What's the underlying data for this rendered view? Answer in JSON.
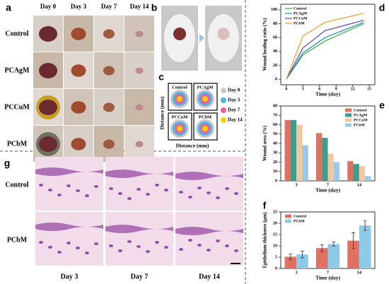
{
  "panel_a": {
    "label": "a",
    "columns": [
      "Day 0",
      "Day 3",
      "Day 7",
      "Day 14"
    ],
    "rows": [
      "Control",
      "PCAgM",
      "PCCuM",
      "PCbM"
    ]
  },
  "panel_b": {
    "label": "b"
  },
  "panel_c": {
    "label": "c",
    "groups": [
      "Control",
      "PCAgM",
      "PCCuM",
      "PCbM"
    ],
    "legend": [
      {
        "name": "Day 0",
        "color": "#c8c8c8"
      },
      {
        "name": "Day 3",
        "color": "#4fb3e8"
      },
      {
        "name": "Day 7",
        "color": "#e8609a"
      },
      {
        "name": "Day 14",
        "color": "#f5d000"
      }
    ],
    "x_label": "Distance (mm)",
    "y_label": "Distance (mm)"
  },
  "panel_g": {
    "label": "g",
    "rows": [
      "Control",
      "PCbM"
    ],
    "columns": [
      "Day 3",
      "Day 7",
      "Day 14"
    ]
  },
  "chart_data": [
    {
      "type": "line",
      "panel_label": "d",
      "x_label": "Time (day)",
      "y_label": "Wound healing ratio (%)",
      "x": [
        0,
        3,
        7,
        14
      ],
      "xlim": [
        -1,
        16
      ],
      "xticks": [
        0,
        3,
        6,
        9,
        12,
        15
      ],
      "ylim": [
        -8,
        108
      ],
      "yticks": [
        0,
        20,
        40,
        60,
        80,
        100
      ],
      "legend": "upper left",
      "series": [
        {
          "name": "Control",
          "color": "#3cb44b",
          "values": [
            0,
            35,
            55,
            80
          ]
        },
        {
          "name": "PCAgM",
          "color": "#2a8fb0",
          "values": [
            0,
            38,
            60,
            82
          ]
        },
        {
          "name": "PCCuM",
          "color": "#6a4fc0",
          "values": [
            0,
            45,
            70,
            85
          ]
        },
        {
          "name": "PCbM",
          "color": "#f0a030",
          "values": [
            0,
            62,
            82,
            95
          ]
        }
      ]
    },
    {
      "type": "bar",
      "panel_label": "e",
      "x_label": "Time (day)",
      "y_label": "Wound area (%)",
      "categories": [
        "3",
        "7",
        "14"
      ],
      "ylim": [
        0,
        80
      ],
      "yticks": [
        0,
        10,
        20,
        30,
        40,
        50,
        60,
        70,
        80
      ],
      "legend": "upper right",
      "series": [
        {
          "name": "Control",
          "color": "#e07060",
          "values": [
            65,
            51,
            21
          ]
        },
        {
          "name": "PCAgM",
          "color": "#3a9e8e",
          "values": [
            65,
            46,
            18
          ]
        },
        {
          "name": "PCCuM",
          "color": "#f2c8a0",
          "values": [
            60,
            29,
            16
          ]
        },
        {
          "name": "PCbM",
          "color": "#9ac8e8",
          "values": [
            38,
            20,
            5
          ]
        }
      ]
    },
    {
      "type": "bar",
      "panel_label": "f",
      "x_label": "Time (day)",
      "y_label": "Epithelium thickness (μm)",
      "categories": [
        "3",
        "7",
        "14"
      ],
      "ylim": [
        0,
        25
      ],
      "yticks": [
        0,
        5,
        10,
        15,
        20,
        25
      ],
      "legend": "upper left",
      "series": [
        {
          "name": "Control",
          "color": "#e07060",
          "values": [
            5.2,
            9.0,
            12.3
          ],
          "errors": [
            1.2,
            1.5,
            3.5
          ]
        },
        {
          "name": "PCbM",
          "color": "#8ecae8",
          "values": [
            6.2,
            10.8,
            19.0
          ],
          "errors": [
            1.5,
            1.0,
            2.2
          ]
        }
      ]
    }
  ]
}
